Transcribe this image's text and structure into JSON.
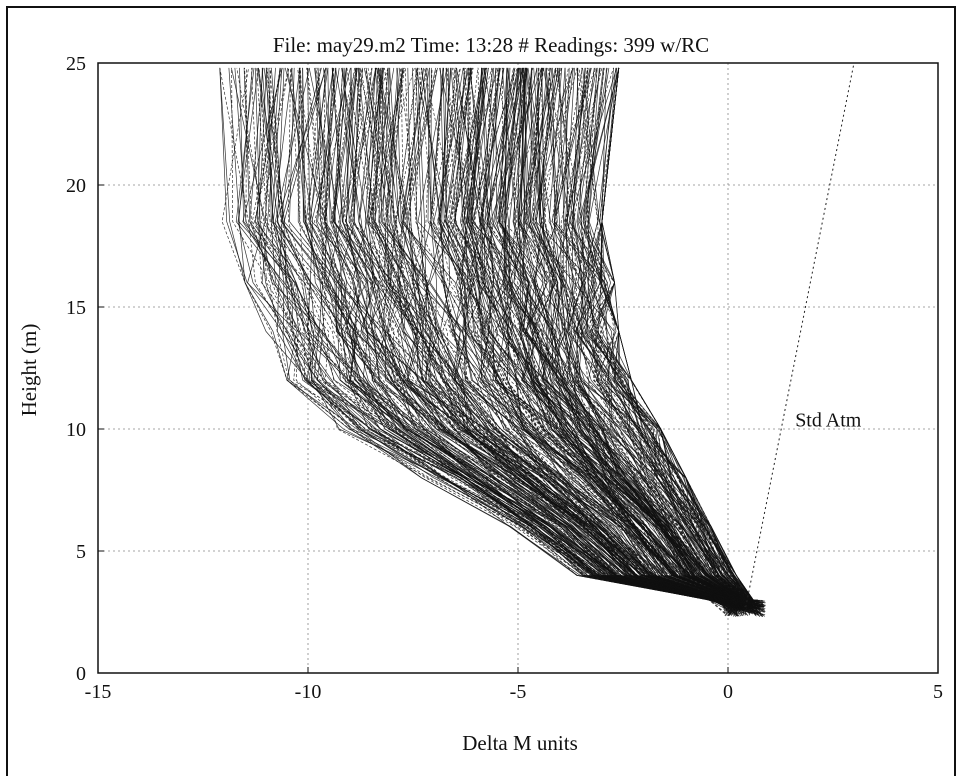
{
  "chart_data": {
    "type": "line",
    "title": "File: may29.m2  Time: 13:28  # Readings: 399 w/RC",
    "xlabel": "Delta M units",
    "ylabel": "Height (m)",
    "xlim": [
      -15,
      5
    ],
    "ylim": [
      0,
      25
    ],
    "xticks": [
      "-15",
      "-10",
      "-5",
      "0",
      "5"
    ],
    "yticks": [
      "0",
      "5",
      "10",
      "15",
      "20",
      "25"
    ],
    "grid": true,
    "series_count": 399,
    "envelope": {
      "heights": [
        2.5,
        3,
        4,
        6,
        8,
        10,
        12,
        14,
        16,
        18.5,
        25
      ],
      "left_edge": [
        0.0,
        -0.5,
        -3.6,
        -5.2,
        -7.3,
        -9.3,
        -10.5,
        -11.0,
        -11.5,
        -12.1,
        -12.1
      ],
      "right_edge": [
        0.9,
        0.6,
        0.2,
        -0.4,
        -1.0,
        -1.6,
        -2.3,
        -2.6,
        -2.7,
        -3.0,
        -2.6
      ]
    },
    "reference_line": {
      "label": "Std Atm",
      "points": [
        [
          0.4,
          2.5
        ],
        [
          3.0,
          25
        ]
      ]
    },
    "annotations": [
      {
        "text": "Std Atm",
        "x": 1.6,
        "y": 10.1
      }
    ]
  }
}
